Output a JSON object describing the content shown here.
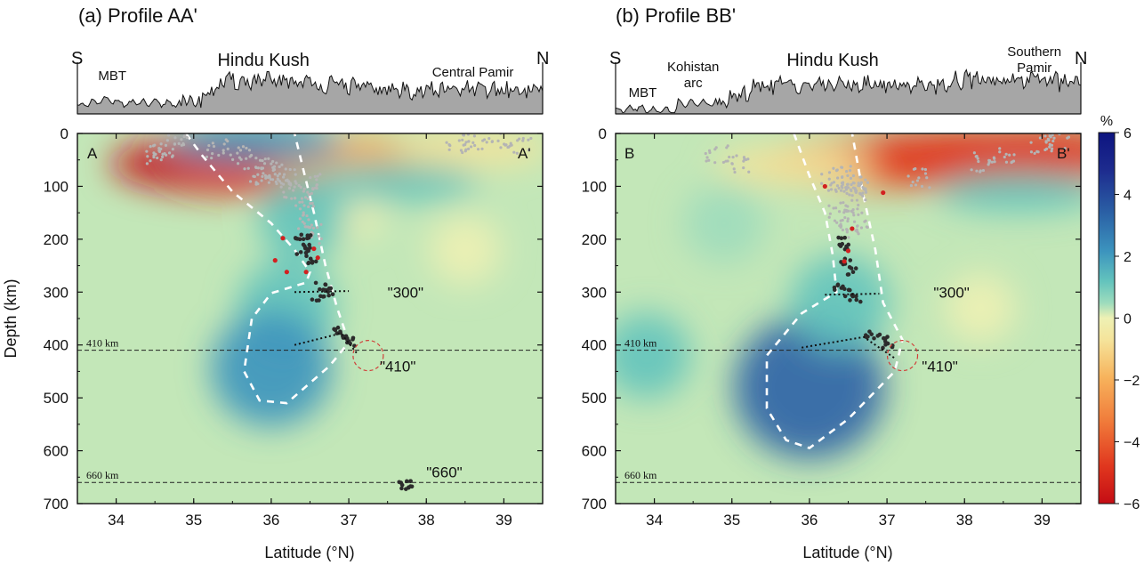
{
  "colors": {
    "cmap": [
      "#c40d14",
      "#e0361e",
      "#f07a3a",
      "#f7b35c",
      "#f5e39a",
      "#eef1b4",
      "#c9ebb4",
      "#9edcbd",
      "#63c3bd",
      "#3c94be",
      "#2b62a6",
      "#1d2b8e",
      "#0d1480"
    ],
    "background": "#c3e7b8",
    "seismicity_gray": "#b4b4b4",
    "cluster_dark": "#2c2c2c",
    "red_events": "#d22020",
    "topo_fill": "#a6a6a6"
  },
  "colorbar": {
    "label": "%",
    "ticks": [
      "6",
      "4",
      "2",
      "0",
      "−2",
      "−4",
      "−6"
    ],
    "min": -6,
    "max": 6
  },
  "chart_data": [
    {
      "type": "heatmap",
      "title": "(a) Profile AA'",
      "xlabel": "Latitude (°N)",
      "ylabel": "Depth (km)",
      "xlim": [
        33.5,
        39.5
      ],
      "ylim": [
        700,
        0
      ],
      "xticks": [
        "34",
        "35",
        "36",
        "37",
        "38",
        "39"
      ],
      "yticks": [
        "0",
        "100",
        "200",
        "300",
        "400",
        "500",
        "600",
        "700"
      ],
      "reference_lines": [
        {
          "depth": 410,
          "label": "410 km"
        },
        {
          "depth": 660,
          "label": "660 km"
        }
      ],
      "profile_labels": {
        "start": "A",
        "end": "A'"
      },
      "topography_labels": {
        "start": "S",
        "end": "N",
        "features": [
          {
            "name": "MBT",
            "lat": 33.95
          },
          {
            "name": "Hindu Kush",
            "lat": 35.9
          },
          {
            "name": "Central Pamir",
            "lat": 38.6
          }
        ]
      },
      "anomalies": [
        {
          "lat": 35.5,
          "depth": 58,
          "value": -5.6
        },
        {
          "lat": 36.3,
          "depth": 65,
          "value": -5.2
        },
        {
          "lat": 37.1,
          "depth": 48,
          "value": -3.5
        },
        {
          "lat": 38.6,
          "depth": 28,
          "value": -1.8
        },
        {
          "lat": 37.0,
          "depth": 130,
          "value": -1.0
        },
        {
          "lat": 38.5,
          "depth": 220,
          "value": -0.8
        },
        {
          "lat": 35.8,
          "depth": 18,
          "value": 2.5
        },
        {
          "lat": 37.6,
          "depth": 92,
          "value": 2.2
        },
        {
          "lat": 36.4,
          "depth": 160,
          "value": 1.5
        },
        {
          "lat": 36.2,
          "depth": 330,
          "value": 2.0
        },
        {
          "lat": 36.0,
          "depth": 445,
          "value": 2.9
        }
      ],
      "slab_contour": [
        [
          34.9,
          0
        ],
        [
          35.1,
          40
        ],
        [
          35.5,
          110
        ],
        [
          36.0,
          170
        ],
        [
          36.3,
          220
        ],
        [
          36.5,
          262
        ],
        [
          36.45,
          282
        ],
        [
          36.0,
          302
        ],
        [
          35.75,
          350
        ],
        [
          35.65,
          450
        ],
        [
          35.85,
          505
        ],
        [
          36.2,
          510
        ],
        [
          36.75,
          440
        ],
        [
          37.0,
          395
        ],
        [
          36.85,
          330
        ],
        [
          36.7,
          250
        ],
        [
          36.55,
          150
        ],
        [
          36.4,
          60
        ],
        [
          36.3,
          0
        ]
      ],
      "seismicity": [
        [
          35.8,
          80
        ],
        [
          36.0,
          75
        ],
        [
          36.1,
          95
        ],
        [
          36.2,
          85
        ],
        [
          35.95,
          65
        ],
        [
          36.3,
          105
        ],
        [
          36.5,
          95
        ],
        [
          36.4,
          125
        ],
        [
          36.5,
          165
        ],
        [
          36.5,
          190
        ],
        [
          34.6,
          30
        ],
        [
          34.5,
          40
        ],
        [
          34.8,
          12
        ],
        [
          35.3,
          30
        ],
        [
          35.6,
          40
        ],
        [
          38.6,
          15
        ],
        [
          38.9,
          12
        ],
        [
          39.2,
          22
        ],
        [
          38.4,
          20
        ]
      ],
      "cluster_events": [
        [
          36.35,
          205
        ],
        [
          36.5,
          210
        ],
        [
          36.4,
          225
        ],
        [
          36.55,
          240
        ],
        [
          36.45,
          190
        ],
        [
          36.65,
          290
        ],
        [
          36.75,
          300
        ],
        [
          36.6,
          310
        ],
        [
          36.85,
          375
        ],
        [
          36.95,
          380
        ],
        [
          37.0,
          395
        ],
        [
          37.75,
          662
        ],
        [
          37.7,
          665
        ]
      ],
      "red_events": [
        [
          36.15,
          198
        ],
        [
          36.55,
          218
        ],
        [
          36.6,
          235
        ],
        [
          36.05,
          240
        ],
        [
          36.2,
          262
        ],
        [
          36.45,
          262
        ]
      ],
      "cluster_labels": [
        {
          "text": "\"300\"",
          "lat": 37.5,
          "depth": 300
        },
        {
          "text": "\"410\"",
          "lat": 37.4,
          "depth": 440
        },
        {
          "text": "\"660\"",
          "lat": 38.0,
          "depth": 640
        }
      ]
    },
    {
      "type": "heatmap",
      "title": "(b) Profile BB'",
      "xlabel": "Latitude (°N)",
      "ylabel": "Depth (km)",
      "xlim": [
        33.5,
        39.5
      ],
      "ylim": [
        700,
        0
      ],
      "xticks": [
        "34",
        "35",
        "36",
        "37",
        "38",
        "39"
      ],
      "yticks": [
        "0",
        "100",
        "200",
        "300",
        "400",
        "500",
        "600",
        "700"
      ],
      "reference_lines": [
        {
          "depth": 410,
          "label": "410 km"
        },
        {
          "depth": 660,
          "label": "660 km"
        }
      ],
      "profile_labels": {
        "start": "B",
        "end": "B'"
      },
      "topography_labels": {
        "start": "S",
        "end": "N",
        "features": [
          {
            "name": "MBT",
            "lat": 33.85
          },
          {
            "name": "Kohistan arc",
            "lat": 34.5
          },
          {
            "name": "Hindu Kush",
            "lat": 36.3
          },
          {
            "name": "Southern Pamir",
            "lat": 38.9
          }
        ]
      },
      "anomalies": [
        {
          "lat": 36.8,
          "depth": 55,
          "value": -4.5
        },
        {
          "lat": 37.9,
          "depth": 45,
          "value": -5.5
        },
        {
          "lat": 39.0,
          "depth": 38,
          "value": -4.6
        },
        {
          "lat": 35.8,
          "depth": 60,
          "value": -2.0
        },
        {
          "lat": 38.2,
          "depth": 330,
          "value": -0.8
        },
        {
          "lat": 38.7,
          "depth": 110,
          "value": 2.2
        },
        {
          "lat": 36.0,
          "depth": 480,
          "value": 4.2
        },
        {
          "lat": 36.4,
          "depth": 320,
          "value": 2.0
        },
        {
          "lat": 33.9,
          "depth": 420,
          "value": 1.5
        },
        {
          "lat": 34.9,
          "depth": 170,
          "value": 1.2
        }
      ],
      "slab_contour": [
        [
          35.8,
          0
        ],
        [
          36.0,
          80
        ],
        [
          36.2,
          150
        ],
        [
          36.3,
          230
        ],
        [
          36.35,
          300
        ],
        [
          35.9,
          340
        ],
        [
          35.45,
          420
        ],
        [
          35.45,
          520
        ],
        [
          35.7,
          580
        ],
        [
          36.0,
          595
        ],
        [
          36.5,
          540
        ],
        [
          37.1,
          450
        ],
        [
          37.2,
          390
        ],
        [
          36.95,
          320
        ],
        [
          36.85,
          220
        ],
        [
          36.7,
          120
        ],
        [
          36.55,
          0
        ]
      ],
      "seismicity": [
        [
          36.4,
          80
        ],
        [
          36.5,
          90
        ],
        [
          36.6,
          100
        ],
        [
          36.3,
          95
        ],
        [
          36.7,
          110
        ],
        [
          36.5,
          130
        ],
        [
          36.4,
          150
        ],
        [
          36.6,
          165
        ],
        [
          36.5,
          180
        ],
        [
          37.4,
          85
        ],
        [
          38.2,
          55
        ],
        [
          38.5,
          45
        ],
        [
          39.2,
          15
        ],
        [
          39.0,
          20
        ],
        [
          34.8,
          40
        ],
        [
          35.1,
          60
        ]
      ],
      "cluster_events": [
        [
          36.45,
          205
        ],
        [
          36.5,
          215
        ],
        [
          36.45,
          240
        ],
        [
          36.55,
          260
        ],
        [
          36.4,
          290
        ],
        [
          36.5,
          300
        ],
        [
          36.6,
          310
        ],
        [
          36.8,
          380
        ],
        [
          36.95,
          385
        ],
        [
          37.0,
          400
        ]
      ],
      "red_events": [
        [
          36.2,
          100
        ],
        [
          36.95,
          112
        ],
        [
          36.55,
          180
        ],
        [
          36.5,
          222
        ],
        [
          36.45,
          242
        ]
      ],
      "cluster_labels": [
        {
          "text": "\"300\"",
          "lat": 37.6,
          "depth": 300
        },
        {
          "text": "\"410\"",
          "lat": 37.45,
          "depth": 440
        }
      ]
    }
  ]
}
